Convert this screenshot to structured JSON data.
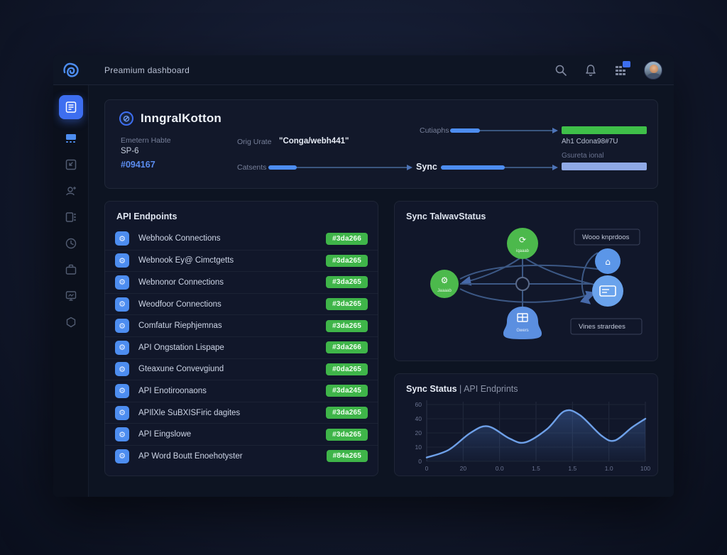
{
  "topbar": {
    "title": "Preamium dashboard",
    "icons": {
      "logo": "scribble-monogram",
      "search": "magnifier",
      "notifications": "bell",
      "apps": "grid-with-badge",
      "avatar": "user-photo"
    }
  },
  "sidebar": {
    "items": [
      {
        "name": "dashboard",
        "active": true
      },
      {
        "name": "reports",
        "active": false
      },
      {
        "name": "media",
        "active": false
      },
      {
        "name": "contacts",
        "active": false
      },
      {
        "name": "apps",
        "active": false
      },
      {
        "name": "history",
        "active": false
      },
      {
        "name": "projects",
        "active": false
      },
      {
        "name": "displays",
        "active": false
      },
      {
        "name": "settings",
        "active": false
      }
    ]
  },
  "header": {
    "title": "InngralKotton",
    "field1_label": "Emetern Habte",
    "field1_value": "SP-6",
    "field1_id": "#094167",
    "field2_label": "Orig Urate",
    "field2_value": "\"Conga/webh441\"",
    "field3_label": "Catsents",
    "field4_label": "Cutiaphs",
    "sync_label": "Sync",
    "green_bar_caption": "Ah1 Cdona98#7U",
    "blue_bar_caption": "Gsureta ional",
    "colors": {
      "green_bar": "#3fbf49",
      "blue_bar": "#8fa9e6",
      "accent_blue": "#4d8df0"
    }
  },
  "endpoints": {
    "title": "API Endpoints",
    "rows": [
      {
        "label": "Webhook Connections",
        "badge": "#3da266"
      },
      {
        "label": "Webnook Ey@ Cimctgetts",
        "badge": "#3da265"
      },
      {
        "label": "Webnonor Connections",
        "badge": "#3da265"
      },
      {
        "label": "Weodfoor Connections",
        "badge": "#3da265"
      },
      {
        "label": "Comfatur Riephjemnas",
        "badge": "#3da265"
      },
      {
        "label": "API Ongstation Lispape",
        "badge": "#3da266"
      },
      {
        "label": "Gteaxune Convevgiund",
        "badge": "#0da265"
      },
      {
        "label": "API Enotiroonaons",
        "badge": "#3da245"
      },
      {
        "label": "APIlXle SuBXISFiric dagites",
        "badge": "#3da265"
      },
      {
        "label": "API Eingslowe",
        "badge": "#3da265"
      },
      {
        "label": "AP Word Boutt Enoehotyster",
        "badge": "#84a265"
      }
    ],
    "badge_color": "#3fb549"
  },
  "diagram": {
    "title": "Sync TalwavStatus",
    "box_top": "Wooo knprdoos",
    "box_bottom": "Vines strardees",
    "node_top_caption": "iqaaab",
    "node_left_caption": "Jaaaab",
    "node_bottom_caption": "Gwers",
    "colors": {
      "node_green": "#4cb94c",
      "node_blue": "#5b96e8",
      "link": "#41608f"
    }
  },
  "chart_data": {
    "type": "area",
    "title": "Sync Status",
    "subtitle": "| API Endprints",
    "x": [
      0,
      10,
      20,
      28,
      38,
      45,
      55,
      63,
      70,
      80,
      86,
      94,
      100
    ],
    "y": [
      4,
      12,
      30,
      37,
      24,
      20,
      34,
      53,
      49,
      27,
      22,
      36,
      45
    ],
    "xlim": [
      0,
      100
    ],
    "ylim": [
      0,
      60
    ],
    "x_tick_labels": [
      "0",
      "20",
      "0.0",
      "1.5",
      "1.5",
      "1.0",
      "100"
    ],
    "y_tick_labels": [
      "60",
      "40",
      "20",
      "10",
      "0"
    ],
    "grid": true,
    "legend": "none",
    "line_color": "#6ea0e8",
    "fill_color": "#4d7dcd"
  }
}
